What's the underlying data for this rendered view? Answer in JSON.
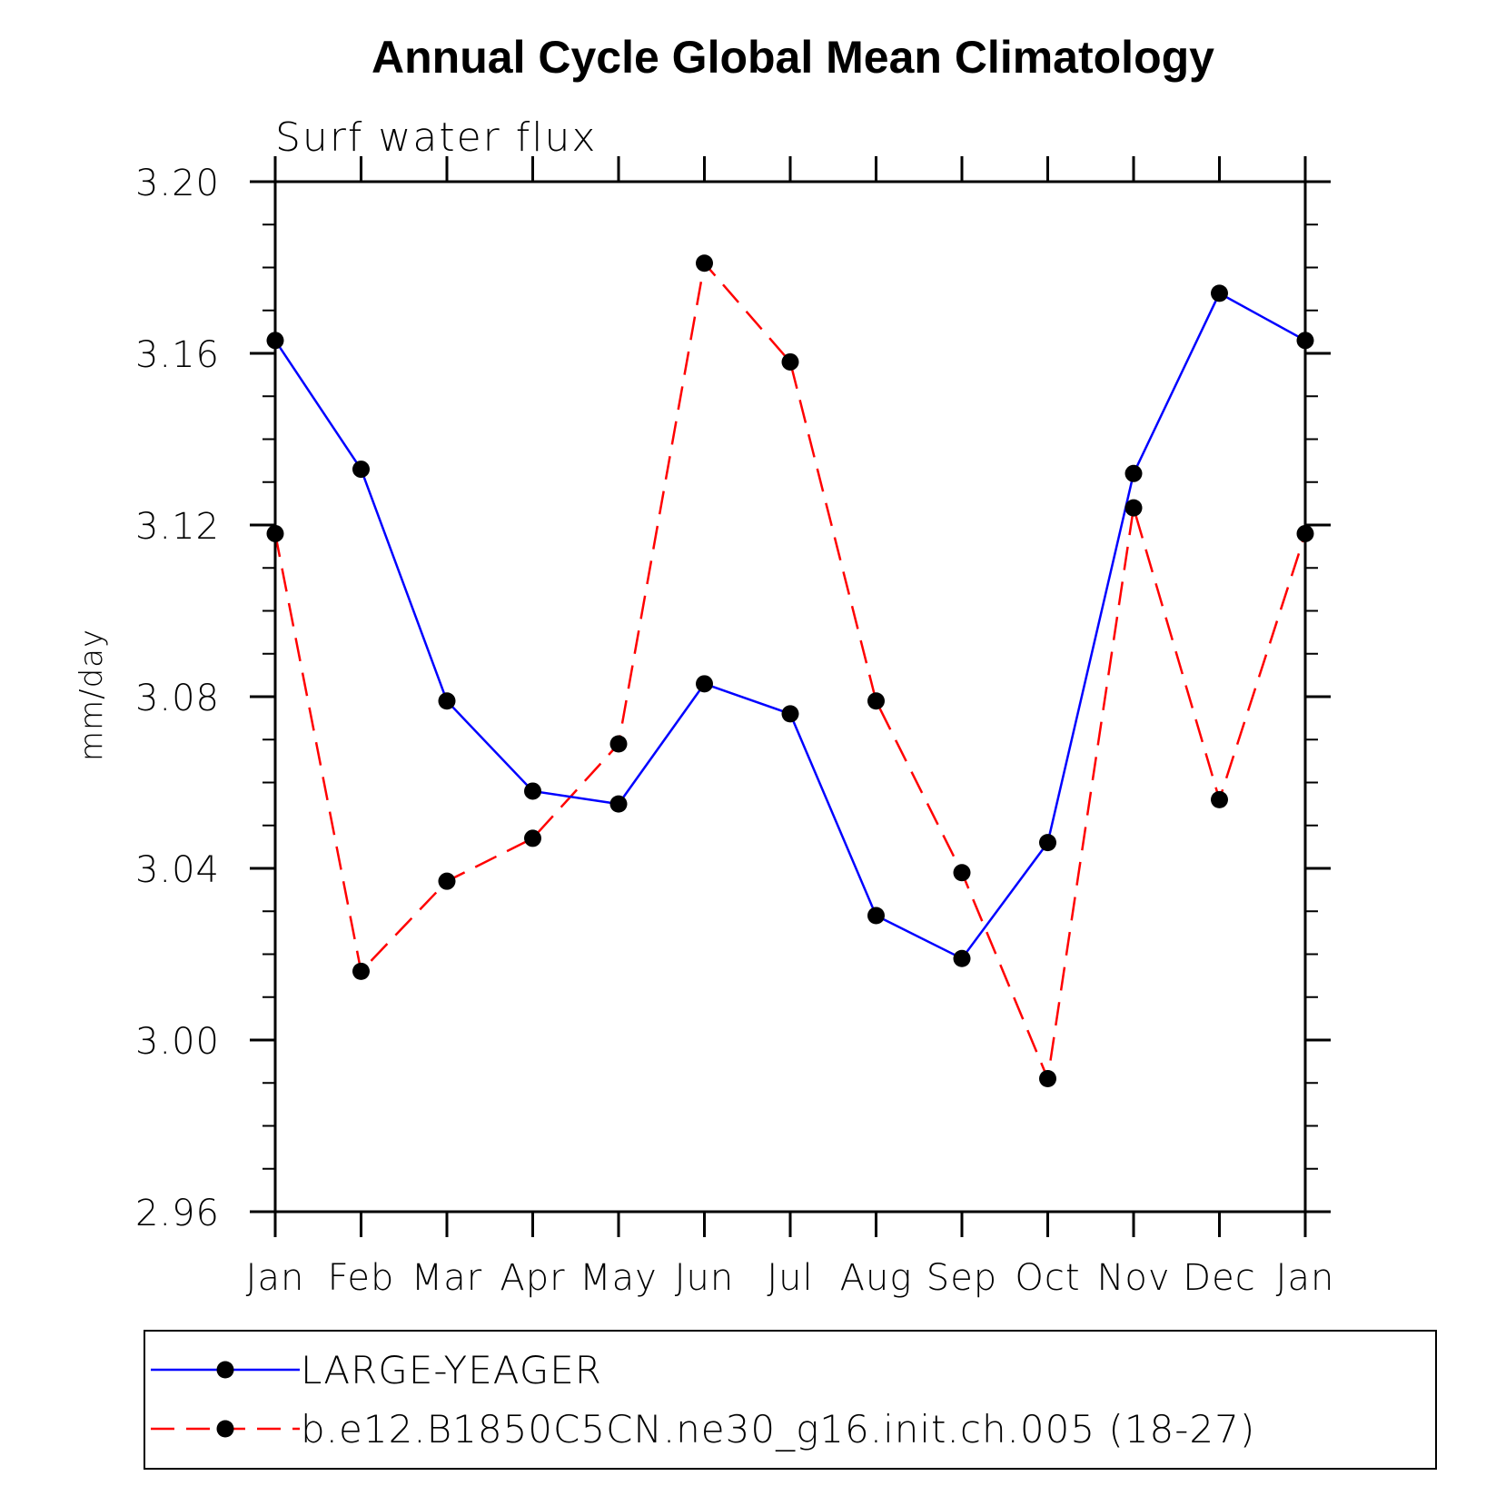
{
  "chart_data": {
    "type": "line",
    "title": "Annual Cycle Global Mean Climatology",
    "subtitle": "Surf water flux",
    "xlabel": "",
    "ylabel": "mm/day",
    "categories": [
      "Jan",
      "Feb",
      "Mar",
      "Apr",
      "May",
      "Jun",
      "Jul",
      "Aug",
      "Sep",
      "Oct",
      "Nov",
      "Dec",
      "Jan"
    ],
    "ylim": [
      2.96,
      3.2
    ],
    "yticks": [
      "2.96",
      "3.00",
      "3.04",
      "3.08",
      "3.12",
      "3.16",
      "3.20"
    ],
    "grid": false,
    "legend_position": "bottom",
    "series": [
      {
        "name": "LARGE-YEAGER",
        "color": "#0000ff",
        "line_style": "solid",
        "values": [
          3.163,
          3.133,
          3.079,
          3.058,
          3.055,
          3.083,
          3.076,
          3.029,
          3.019,
          3.046,
          3.132,
          3.174,
          3.163
        ]
      },
      {
        "name": "b.e12.B1850C5CN.ne30_g16.init.ch.005 (18-27)",
        "color": "#ff0000",
        "line_style": "dashed",
        "values": [
          3.118,
          3.016,
          3.037,
          3.047,
          3.069,
          3.181,
          3.158,
          3.079,
          3.039,
          2.991,
          3.124,
          3.056,
          3.118
        ]
      }
    ]
  }
}
